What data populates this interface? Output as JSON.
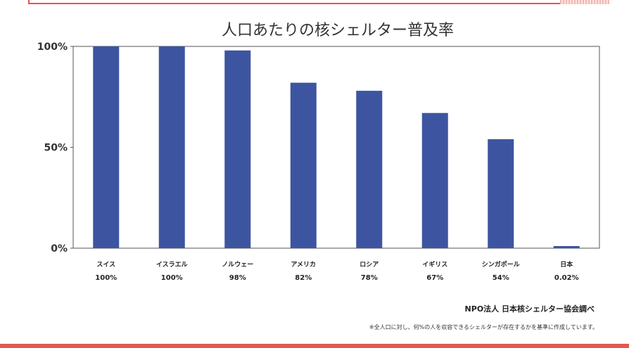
{
  "chart_data": {
    "type": "bar",
    "title": "人口あたりの核シェルター普及率",
    "categories": [
      "スイス",
      "イスラエル",
      "ノルウェー",
      "アメリカ",
      "ロシア",
      "イギリス",
      "シンガポール",
      "日本"
    ],
    "values": [
      100,
      100,
      98,
      82,
      78,
      67,
      54,
      0.02
    ],
    "value_labels": [
      "100%",
      "100%",
      "98%",
      "82%",
      "78%",
      "67%",
      "54%",
      "0.02%"
    ],
    "y_ticks": [
      {
        "value": 0,
        "label": "0%"
      },
      {
        "value": 50,
        "label": "50%"
      },
      {
        "value": 100,
        "label": "100%"
      }
    ],
    "ylim": [
      0,
      100
    ],
    "xlabel": "",
    "ylabel": "",
    "bar_color": "#3d55a0",
    "grid": false
  },
  "footer": {
    "source": "NPO法人 日本核シェルター協会調べ",
    "note": "※全人口に対し、何%の人を収容できるシェルターが存在するかを基準に作成しています。"
  },
  "colors": {
    "accent": "#e05a52",
    "axis": "#555555"
  }
}
